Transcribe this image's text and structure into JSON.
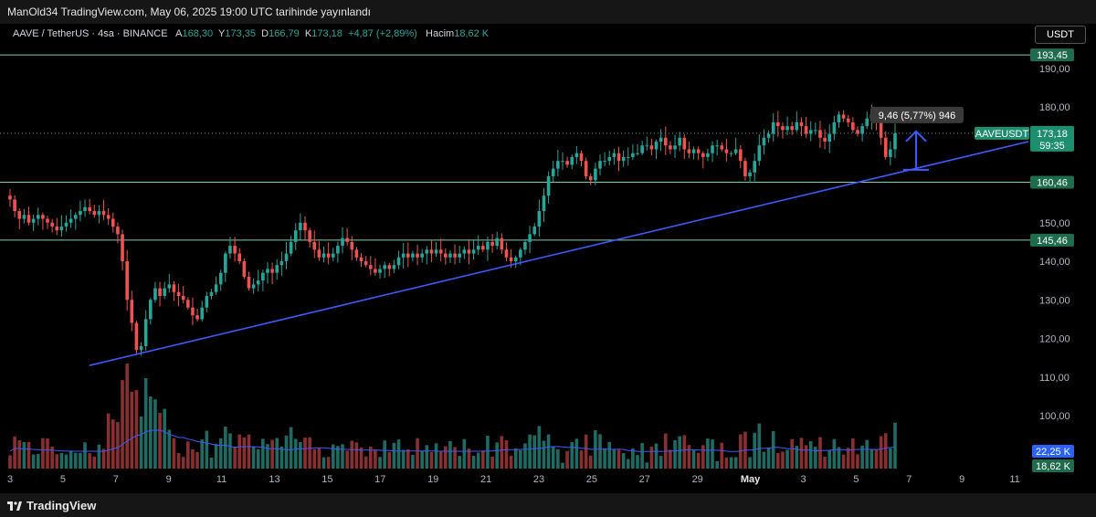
{
  "header": {
    "published": "ManOld34 TradingView.com, May 06, 2025 19:00 UTC tarihinde yayınlandı"
  },
  "legend": {
    "symbol": "AAVE / TetherUS · 4sa · BINANCE",
    "open_label": "A",
    "open": "168,30",
    "high_label": "Y",
    "high": "173,35",
    "low_label": "D",
    "low": "166,79",
    "close_label": "K",
    "close": "173,18",
    "change": "+4,87 (+2,89%)",
    "volume_label": "Hacim",
    "volume": "18,62 K"
  },
  "currency_button": "USDT",
  "footer": {
    "brand": "TradingView"
  },
  "colors": {
    "up": "#26a69a",
    "down": "#ef5350",
    "trendline": "#3d5afe",
    "level": "#7fd1a8",
    "volume_ma": "#3d5afe",
    "background": "#000000"
  },
  "chart_data": {
    "type": "candlestick",
    "title": "AAVE / TetherUS · 4sa · BINANCE",
    "y_ticks": [
      "190,00",
      "180,00",
      "150,00",
      "140,00",
      "130,00",
      "120,00",
      "110,00",
      "100,00"
    ],
    "x_ticks": [
      "3",
      "5",
      "7",
      "9",
      "11",
      "13",
      "15",
      "17",
      "19",
      "21",
      "23",
      "25",
      "27",
      "29",
      "May",
      "3",
      "5",
      "7",
      "9",
      "11"
    ],
    "ylim": [
      92,
      197
    ],
    "levels": [
      {
        "value": 193.45,
        "label": "193,45"
      },
      {
        "value": 160.46,
        "label": "160,46"
      },
      {
        "value": 145.46,
        "label": "145,46"
      }
    ],
    "last_price": {
      "value": 173.18,
      "symbol": "AAVEUSDT",
      "label": "173,18",
      "countdown": "59:35"
    },
    "measure": {
      "text": "9,46 (5,77%) 946",
      "from": 163.7,
      "to": 173.18
    },
    "trendline": {
      "x_start": "Apr 6",
      "y_start": 113,
      "x_end": "May 7",
      "y_end": 171
    },
    "volume_ma_label": "22,25 K",
    "volume_label": "18,62 K",
    "series": [
      {
        "name": "AAVEUSDT",
        "close": [
          156,
          153,
          151,
          152,
          150,
          151,
          152,
          151,
          150,
          149,
          148,
          149,
          150,
          151,
          152,
          153,
          154,
          153,
          152,
          153,
          152,
          151,
          149,
          147,
          140,
          130,
          124,
          117,
          118,
          125,
          130,
          133,
          131,
          133,
          134,
          132,
          131,
          130,
          128,
          126,
          125,
          128,
          131,
          132,
          134,
          137,
          142,
          144,
          142,
          140,
          136,
          133,
          134,
          135,
          137,
          138,
          137,
          139,
          140,
          142,
          145,
          148,
          150,
          148,
          145,
          143,
          141,
          142,
          141,
          142,
          144,
          146,
          145,
          143,
          141,
          140,
          139,
          138,
          137,
          138,
          139,
          138,
          139,
          141,
          142,
          141,
          142,
          141,
          142,
          143,
          142,
          143,
          142,
          141,
          142,
          141,
          142,
          143,
          142,
          143,
          144,
          143,
          145,
          144,
          146,
          143,
          141,
          140,
          141,
          143,
          145,
          147,
          149,
          153,
          157,
          162,
          164,
          166,
          166,
          165,
          167,
          168,
          166,
          162,
          161,
          164,
          166,
          166,
          167,
          168,
          166,
          167,
          167,
          168,
          168,
          170,
          170,
          169,
          171,
          172,
          170,
          169,
          170,
          172,
          169,
          168,
          169,
          168,
          167,
          168,
          170,
          170,
          169,
          168,
          168,
          169,
          166,
          162,
          163,
          166,
          170,
          172,
          173,
          176,
          175,
          174,
          175,
          174,
          176,
          175,
          173,
          174,
          174,
          172,
          171,
          173,
          176,
          178,
          177,
          176,
          174,
          173,
          175,
          177,
          178,
          176,
          172,
          167,
          169,
          173.18
        ]
      }
    ]
  }
}
